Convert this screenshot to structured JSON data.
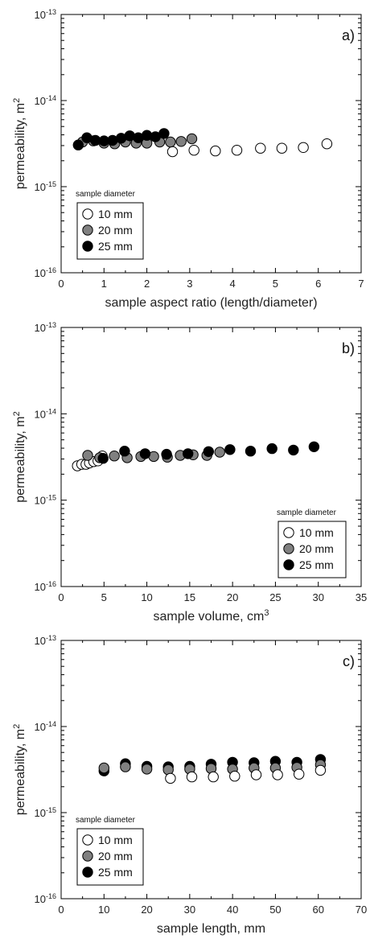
{
  "chart_data": [
    {
      "type": "scatter",
      "panel_label": "a)",
      "xlabel": "sample aspect ratio (length/diameter)",
      "ylabel": "permeability, m",
      "ylabel_sup": "2",
      "xlim": [
        0,
        7
      ],
      "x_ticks": [
        "0",
        "1",
        "2",
        "3",
        "4",
        "5",
        "6",
        "7"
      ],
      "y_scale": "log",
      "ylim_exp": [
        -16,
        -13
      ],
      "y_ticks": [
        {
          "base": "10",
          "exp": "-16"
        },
        {
          "base": "10",
          "exp": "-15"
        },
        {
          "base": "10",
          "exp": "-14"
        },
        {
          "base": "10",
          "exp": "-13"
        }
      ],
      "legend_title": "sample diameter",
      "legend_position": "lower-left",
      "series": [
        {
          "name": "10 mm",
          "color": "#ffffff",
          "points": [
            [
              2.6,
              2.55e-15
            ],
            [
              3.1,
              2.65e-15
            ],
            [
              3.6,
              2.6e-15
            ],
            [
              4.1,
              2.65e-15
            ],
            [
              4.65,
              2.8e-15
            ],
            [
              5.15,
              2.8e-15
            ],
            [
              5.65,
              2.85e-15
            ],
            [
              6.2,
              3.15e-15
            ]
          ]
        },
        {
          "name": "20 mm",
          "color": "#808080",
          "points": [
            [
              0.5,
              3.3e-15
            ],
            [
              0.75,
              3.4e-15
            ],
            [
              1.0,
              3.2e-15
            ],
            [
              1.25,
              3.15e-15
            ],
            [
              1.5,
              3.3e-15
            ],
            [
              1.75,
              3.2e-15
            ],
            [
              2.0,
              3.2e-15
            ],
            [
              2.3,
              3.3e-15
            ],
            [
              2.55,
              3.3e-15
            ],
            [
              2.8,
              3.35e-15
            ],
            [
              3.05,
              3.6e-15
            ]
          ]
        },
        {
          "name": "25 mm",
          "color": "#000000",
          "points": [
            [
              0.4,
              3.05e-15
            ],
            [
              0.6,
              3.7e-15
            ],
            [
              0.8,
              3.45e-15
            ],
            [
              1.0,
              3.4e-15
            ],
            [
              1.2,
              3.45e-15
            ],
            [
              1.4,
              3.65e-15
            ],
            [
              1.6,
              3.9e-15
            ],
            [
              1.8,
              3.7e-15
            ],
            [
              2.0,
              3.95e-15
            ],
            [
              2.2,
              3.8e-15
            ],
            [
              2.4,
              4.15e-15
            ]
          ]
        }
      ]
    },
    {
      "type": "scatter",
      "panel_label": "b)",
      "xlabel": "sample volume, cm",
      "xlabel_sup": "3",
      "ylabel": "permeability, m",
      "ylabel_sup": "2",
      "xlim": [
        0,
        35
      ],
      "x_ticks": [
        "0",
        "5",
        "10",
        "15",
        "20",
        "25",
        "30",
        "35"
      ],
      "y_scale": "log",
      "ylim_exp": [
        -16,
        -13
      ],
      "y_ticks": [
        {
          "base": "10",
          "exp": "-16"
        },
        {
          "base": "10",
          "exp": "-15"
        },
        {
          "base": "10",
          "exp": "-14"
        },
        {
          "base": "10",
          "exp": "-13"
        }
      ],
      "legend_title": "sample diameter",
      "legend_position": "lower-right",
      "series": [
        {
          "name": "10 mm",
          "color": "#ffffff",
          "points": [
            [
              1.9,
              2.5e-15
            ],
            [
              2.4,
              2.6e-15
            ],
            [
              2.9,
              2.6e-15
            ],
            [
              3.3,
              2.7e-15
            ],
            [
              3.8,
              2.8e-15
            ],
            [
              4.3,
              2.85e-15
            ],
            [
              4.8,
              3.25e-15
            ]
          ]
        },
        {
          "name": "20 mm",
          "color": "#808080",
          "points": [
            [
              3.1,
              3.3e-15
            ],
            [
              4.5,
              3.1e-15
            ],
            [
              6.2,
              3.25e-15
            ],
            [
              7.7,
              3.1e-15
            ],
            [
              9.3,
              3.2e-15
            ],
            [
              10.8,
              3.2e-15
            ],
            [
              12.4,
              3.15e-15
            ],
            [
              13.9,
              3.3e-15
            ],
            [
              15.4,
              3.35e-15
            ],
            [
              17.0,
              3.3e-15
            ],
            [
              18.5,
              3.6e-15
            ]
          ]
        },
        {
          "name": "25 mm",
          "color": "#000000",
          "points": [
            [
              4.9,
              3.05e-15
            ],
            [
              7.4,
              3.7e-15
            ],
            [
              9.8,
              3.45e-15
            ],
            [
              12.3,
              3.4e-15
            ],
            [
              14.8,
              3.45e-15
            ],
            [
              17.2,
              3.65e-15
            ],
            [
              19.7,
              3.85e-15
            ],
            [
              22.1,
              3.7e-15
            ],
            [
              24.6,
              3.95e-15
            ],
            [
              27.1,
              3.8e-15
            ],
            [
              29.5,
              4.15e-15
            ]
          ]
        }
      ]
    },
    {
      "type": "scatter",
      "panel_label": "c)",
      "xlabel": "sample length, mm",
      "ylabel": "permeability, m",
      "ylabel_sup": "2",
      "xlim": [
        0,
        70
      ],
      "x_ticks": [
        "0",
        "10",
        "20",
        "30",
        "40",
        "50",
        "60",
        "70"
      ],
      "y_scale": "log",
      "ylim_exp": [
        -16,
        -13
      ],
      "y_ticks": [
        {
          "base": "10",
          "exp": "-16"
        },
        {
          "base": "10",
          "exp": "-15"
        },
        {
          "base": "10",
          "exp": "-14"
        },
        {
          "base": "10",
          "exp": "-13"
        }
      ],
      "legend_title": "sample diameter",
      "legend_position": "lower-left",
      "series": [
        {
          "name": "25 mm",
          "color": "#000000",
          "points": [
            [
              10,
              3.05e-15
            ],
            [
              15,
              3.7e-15
            ],
            [
              20,
              3.45e-15
            ],
            [
              25,
              3.4e-15
            ],
            [
              30,
              3.45e-15
            ],
            [
              35,
              3.65e-15
            ],
            [
              40,
              3.85e-15
            ],
            [
              45,
              3.8e-15
            ],
            [
              50,
              3.95e-15
            ],
            [
              55,
              3.85e-15
            ],
            [
              60.5,
              4.15e-15
            ]
          ]
        },
        {
          "name": "20 mm",
          "color": "#808080",
          "points": [
            [
              10,
              3.3e-15
            ],
            [
              15,
              3.4e-15
            ],
            [
              20,
              3.2e-15
            ],
            [
              25,
              3.15e-15
            ],
            [
              30,
              3.2e-15
            ],
            [
              35,
              3.25e-15
            ],
            [
              40,
              3.2e-15
            ],
            [
              45,
              3.3e-15
            ],
            [
              50,
              3.3e-15
            ],
            [
              55,
              3.35e-15
            ],
            [
              60.5,
              3.6e-15
            ]
          ]
        },
        {
          "name": "10 mm",
          "color": "#ffffff",
          "points": [
            [
              25.5,
              2.5e-15
            ],
            [
              30.5,
              2.6e-15
            ],
            [
              35.5,
              2.6e-15
            ],
            [
              40.5,
              2.65e-15
            ],
            [
              45.5,
              2.75e-15
            ],
            [
              50.5,
              2.75e-15
            ],
            [
              55.5,
              2.8e-15
            ],
            [
              60.5,
              3.1e-15
            ]
          ]
        }
      ],
      "legend_order": [
        "10 mm",
        "20 mm",
        "25 mm"
      ]
    }
  ]
}
